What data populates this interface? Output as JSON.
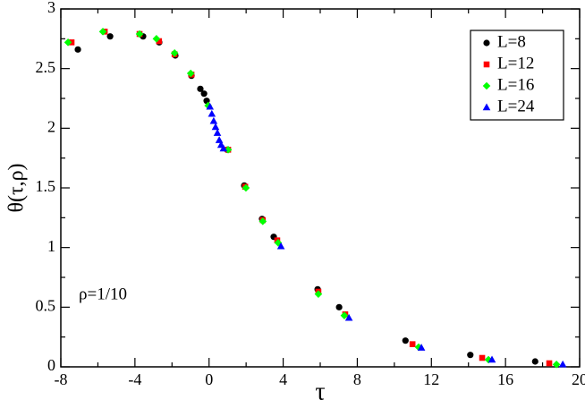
{
  "chart_data": {
    "type": "scatter",
    "x_label": "τ",
    "y_label": "θ(τ,ρ)",
    "annotation": "ρ=1/10",
    "xlim": [
      -8,
      20
    ],
    "xticks": [
      -8,
      -4,
      0,
      4,
      8,
      12,
      16,
      20
    ],
    "xminorticks": [
      -6,
      -2,
      2,
      6,
      10,
      14,
      18
    ],
    "ylim": [
      0,
      3
    ],
    "yticks": [
      0,
      0.5,
      1,
      1.5,
      2,
      2.5,
      3
    ],
    "yminorticks": [
      0.25,
      0.75,
      1.25,
      1.75,
      2.25,
      2.75
    ],
    "legend": "upper right",
    "series": [
      {
        "name": "L=8",
        "color": "#000000",
        "marker": "circle",
        "x": [
          -7.08,
          -5.34,
          -3.56,
          -2.69,
          -1.82,
          -0.95,
          -0.47,
          -0.27,
          -0.13,
          0.98,
          1.9,
          2.86,
          3.49,
          5.86,
          7.02,
          10.6,
          14.1,
          17.6
        ],
        "values": [
          2.66,
          2.77,
          2.77,
          2.72,
          2.61,
          2.44,
          2.33,
          2.29,
          2.23,
          1.82,
          1.52,
          1.24,
          1.09,
          0.65,
          0.5,
          0.22,
          0.1,
          0.045
        ]
      },
      {
        "name": "L=12",
        "color": "#ff0000",
        "marker": "square",
        "x": [
          -7.42,
          -5.63,
          -3.75,
          -2.7,
          -1.86,
          -0.95,
          1.03,
          1.95,
          2.9,
          3.68,
          5.9,
          7.35,
          10.98,
          14.74,
          18.36
        ],
        "values": [
          2.72,
          2.81,
          2.79,
          2.73,
          2.62,
          2.45,
          1.82,
          1.51,
          1.23,
          1.06,
          0.63,
          0.44,
          0.19,
          0.075,
          0.03
        ]
      },
      {
        "name": "L=16",
        "color": "#00ff00",
        "marker": "diamond",
        "x": [
          -7.61,
          -5.73,
          -3.75,
          -2.84,
          -1.86,
          -0.99,
          -0.05,
          1.03,
          1.99,
          2.9,
          3.73,
          5.9,
          7.3,
          11.31,
          15.08,
          18.75
        ],
        "values": [
          2.72,
          2.81,
          2.79,
          2.75,
          2.63,
          2.46,
          2.19,
          1.82,
          1.5,
          1.22,
          1.04,
          0.61,
          0.43,
          0.165,
          0.06,
          0.02
        ]
      },
      {
        "name": "L=24",
        "color": "#0000ff",
        "marker": "triangle",
        "x": [
          0.05,
          0.15,
          0.25,
          0.35,
          0.45,
          0.55,
          0.65,
          0.78,
          3.88,
          7.55,
          11.46,
          15.27,
          19.09
        ],
        "values": [
          2.18,
          2.12,
          2.06,
          2.01,
          1.96,
          1.9,
          1.86,
          1.83,
          1.01,
          0.41,
          0.16,
          0.06,
          0.02
        ]
      }
    ]
  }
}
